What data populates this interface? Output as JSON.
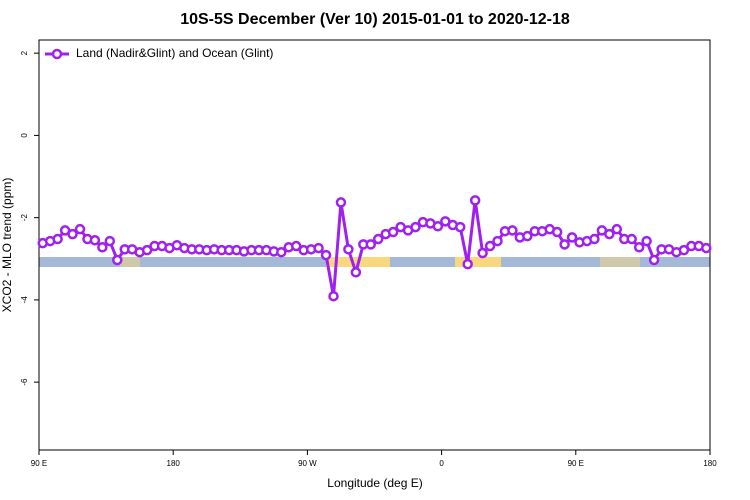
{
  "chart_data": {
    "type": "line",
    "title": "10S-5S December (Ver 10)   2015-01-01 to 2020-12-18",
    "xlabel": "Longitude (deg E)",
    "ylabel": "XCO2 - MLO trend (ppm)",
    "xlim": [
      90,
      540
    ],
    "ylim": [
      -7.65,
      2.32
    ],
    "xticks": [
      {
        "value": 90,
        "label": "90 E"
      },
      {
        "value": 180,
        "label": "180"
      },
      {
        "value": 270,
        "label": "90 W"
      },
      {
        "value": 360,
        "label": "0"
      },
      {
        "value": 450,
        "label": "90 E"
      },
      {
        "value": 540,
        "label": "180"
      }
    ],
    "yticks": [
      2,
      0,
      -2,
      -4,
      -6
    ],
    "legend": "top-left",
    "x": [
      92.5,
      97.5,
      102.5,
      107.5,
      112.5,
      117.5,
      122.5,
      127.5,
      132.5,
      137.5,
      142.5,
      147.5,
      152.5,
      157.5,
      162.5,
      167.5,
      172.5,
      177.5,
      182.5,
      187.5,
      192.5,
      197.5,
      202.5,
      207.5,
      212.5,
      217.5,
      222.5,
      227.5,
      232.5,
      237.5,
      242.5,
      247.5,
      252.5,
      257.5,
      262.5,
      267.5,
      272.5,
      277.5,
      282.5,
      287.5,
      292.5,
      297.5,
      302.5,
      307.5,
      312.5,
      317.5,
      322.5,
      327.5,
      332.5,
      337.5,
      342.5,
      347.5,
      352.5,
      357.5,
      362.5,
      367.5,
      372.5,
      377.5,
      382.5,
      387.5,
      392.5,
      397.5,
      402.5,
      407.5,
      412.5,
      417.5,
      422.5,
      427.5,
      432.5,
      437.5,
      442.5,
      447.5,
      452.5,
      457.5,
      462.5,
      467.5,
      472.5,
      477.5,
      482.5,
      487.5,
      492.5,
      497.5,
      502.5,
      507.5,
      512.5,
      517.5,
      522.5,
      527.5,
      532.5,
      537.5
    ],
    "series": [
      {
        "name": "Land (Nadir&Glint) and Ocean (Glint)",
        "color": "#a020f0",
        "values": [
          -2.62,
          -2.57,
          -2.52,
          -2.31,
          -2.4,
          -2.28,
          -2.52,
          -2.55,
          -2.72,
          -2.57,
          -3.03,
          -2.77,
          -2.77,
          -2.84,
          -2.79,
          -2.69,
          -2.69,
          -2.74,
          -2.67,
          -2.74,
          -2.77,
          -2.77,
          -2.79,
          -2.77,
          -2.79,
          -2.79,
          -2.79,
          -2.82,
          -2.79,
          -2.79,
          -2.79,
          -2.82,
          -2.84,
          -2.72,
          -2.69,
          -2.79,
          -2.77,
          -2.74,
          -2.91,
          -3.91,
          -1.63,
          -2.77,
          -3.33,
          -2.65,
          -2.65,
          -2.52,
          -2.4,
          -2.35,
          -2.23,
          -2.31,
          -2.23,
          -2.11,
          -2.14,
          -2.21,
          -2.09,
          -2.18,
          -2.23,
          -3.13,
          -1.58,
          -2.86,
          -2.69,
          -2.57,
          -2.33,
          -2.31,
          -2.48,
          -2.45,
          -2.33,
          -2.33,
          -2.28,
          -2.35,
          -2.65,
          -2.48,
          -2.6,
          -2.57,
          -2.52,
          -2.31,
          -2.4,
          -2.28,
          -2.52,
          -2.52,
          -2.72,
          -2.57,
          -3.03,
          -2.77,
          -2.77,
          -2.84,
          -2.79,
          -2.69,
          -2.69,
          -2.74
        ]
      }
    ]
  }
}
